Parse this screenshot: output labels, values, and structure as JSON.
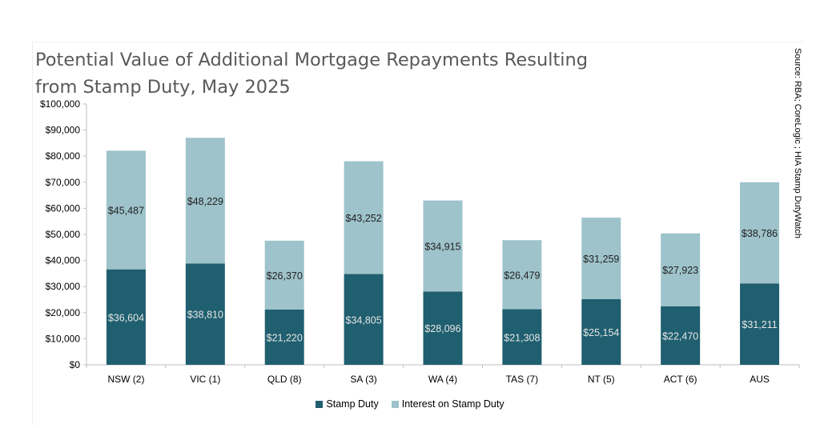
{
  "chart_data": {
    "type": "bar",
    "stacked": true,
    "title": "Potential Value of Additional Mortgage Repayments Resulting from Stamp Duty, May 2025",
    "title_lines": [
      "Potential Value of Additional Mortgage Repayments Resulting",
      "from Stamp Duty, May 2025"
    ],
    "source": "Source: RBA; CoreLogic ; HIA Stamp DutyWatch",
    "categories": [
      "NSW (2)",
      "VIC (1)",
      "QLD (8)",
      "SA (3)",
      "WA (4)",
      "TAS (7)",
      "NT (5)",
      "ACT (6)",
      "AUS"
    ],
    "series": [
      {
        "name": "Stamp Duty",
        "color": "#1f5f6f",
        "label_color": "#e6e6e6",
        "values": [
          36604,
          38810,
          21220,
          34805,
          28096,
          21308,
          25154,
          22470,
          31211
        ],
        "labels": [
          "$36,604",
          "$38,810",
          "$21,220",
          "$34,805",
          "$28,096",
          "$21,308",
          "$25,154",
          "$22,470",
          "$31,211"
        ]
      },
      {
        "name": "Interest on Stamp Duty",
        "color": "#9ec3cb",
        "label_color": "#222222",
        "values": [
          45487,
          48229,
          26370,
          43252,
          34915,
          26479,
          31259,
          27923,
          38786
        ],
        "labels": [
          "$45,487",
          "$48,229",
          "$26,370",
          "$43,252",
          "$34,915",
          "$26,479",
          "$31,259",
          "$27,923",
          "$38,786"
        ]
      }
    ],
    "yticks": [
      "$0",
      "$10,000",
      "$20,000",
      "$30,000",
      "$40,000",
      "$50,000",
      "$60,000",
      "$70,000",
      "$80,000",
      "$90,000",
      "$100,000"
    ],
    "ylim": [
      0,
      100000
    ],
    "ylabel": "",
    "xlabel": "",
    "grid": false,
    "legend": "bottom"
  }
}
